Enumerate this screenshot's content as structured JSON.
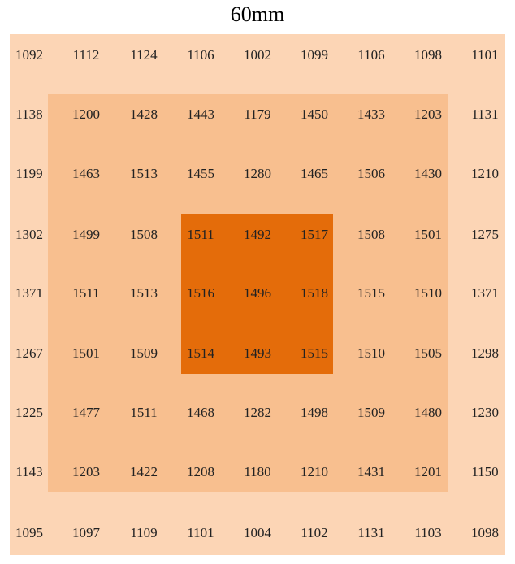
{
  "title": "60mm",
  "rows": [
    [
      1092,
      1112,
      1124,
      1106,
      1002,
      1099,
      1106,
      1098,
      1101
    ],
    [
      1138,
      1200,
      1428,
      1443,
      1179,
      1450,
      1433,
      1203,
      1131
    ],
    [
      1199,
      1463,
      1513,
      1455,
      1280,
      1465,
      1506,
      1430,
      1210
    ],
    [
      1302,
      1499,
      1508,
      1511,
      1492,
      1517,
      1508,
      1501,
      1275
    ],
    [
      1371,
      1511,
      1513,
      1516,
      1496,
      1518,
      1515,
      1510,
      1371
    ],
    [
      1267,
      1501,
      1509,
      1514,
      1493,
      1515,
      1510,
      1505,
      1298
    ],
    [
      1225,
      1477,
      1511,
      1468,
      1282,
      1498,
      1509,
      1480,
      1230
    ],
    [
      1143,
      1203,
      1422,
      1208,
      1180,
      1210,
      1431,
      1201,
      1150
    ],
    [
      1095,
      1097,
      1109,
      1101,
      1004,
      1102,
      1131,
      1103,
      1098
    ]
  ]
}
